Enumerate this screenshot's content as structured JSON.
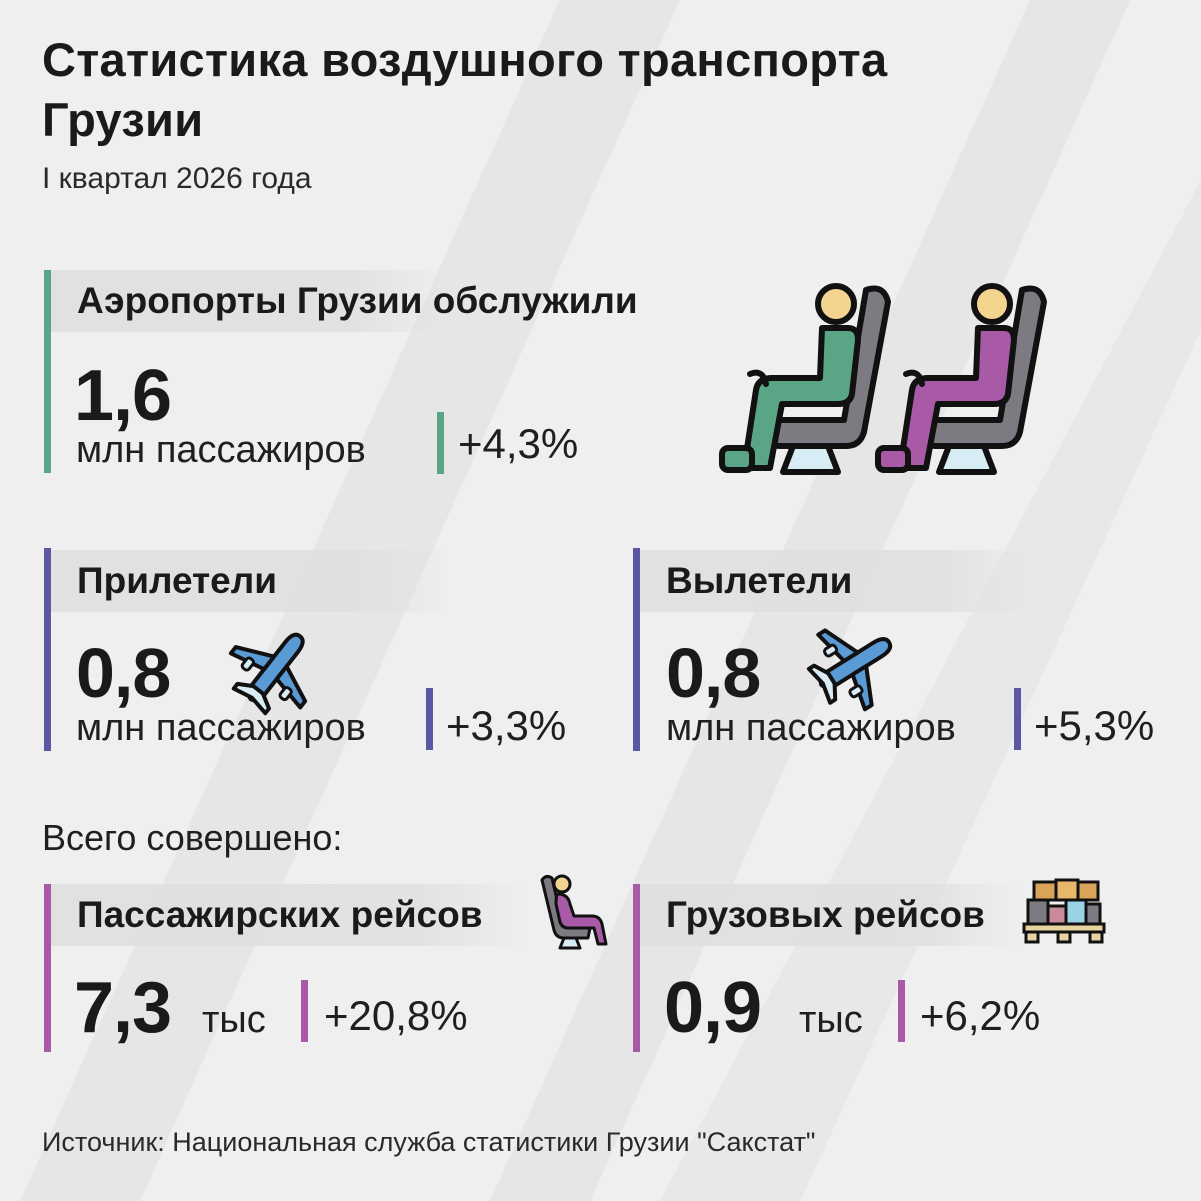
{
  "header": {
    "title_line1": "Статистика воздушного транспорта",
    "title_line2": "Грузии",
    "subtitle": "I квартал 2026 года"
  },
  "airports": {
    "label": "Аэропорты Грузии обслужили",
    "value": "1,6",
    "unit": "млн пассажиров",
    "change": "+4,3%",
    "icon": "seated-passengers-icon"
  },
  "arrivals": {
    "label": "Прилетели",
    "value": "0,8",
    "unit": "млн пассажиров",
    "change": "+3,3%",
    "icon": "airplane-icon"
  },
  "departures": {
    "label": "Вылетели",
    "value": "0,8",
    "unit": "млн пассажиров",
    "change": "+5,3%",
    "icon": "airplane-icon"
  },
  "totals": {
    "heading": "Всего совершено:",
    "passenger_flights": {
      "label": "Пассажирских рейсов",
      "value": "7,3",
      "unit": "тыс",
      "change": "+20,8%",
      "icon": "seated-passenger-icon"
    },
    "cargo_flights": {
      "label": "Грузовых рейсов",
      "value": "0,9",
      "unit": "тыс",
      "change": "+6,2%",
      "icon": "cargo-pallet-icon"
    }
  },
  "source": "Источник: Национальная служба статистики Грузии \"Сакстат\"",
  "colors": {
    "green": "#5aa585",
    "blue": "#5b57a3",
    "pink": "#a85aa6",
    "plane": "#5b9bd5",
    "background": "#efefef"
  }
}
